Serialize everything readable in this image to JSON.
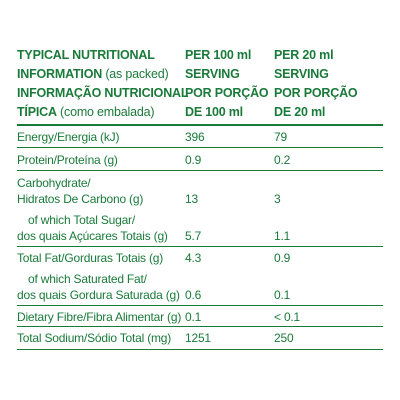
{
  "header": {
    "col1": {
      "line1": "TYPICAL NUTRITIONAL",
      "line2_bold": "INFORMATION",
      "line2_normal": " (as packed)",
      "line3": "INFORMAÇÃO NUTRICIONAL",
      "line4_bold": "TÍPICA",
      "line4_normal": " (como embalada)"
    },
    "col2": {
      "line1": "PER 100 ml",
      "line2": "SERVING",
      "line3": "POR PORÇÃO",
      "line4": "DE 100 ml"
    },
    "col3": {
      "line1": "PER 20 ml",
      "line2": "SERVING",
      "line3": "POR PORÇÃO",
      "line4": "DE 20 ml"
    }
  },
  "rows": [
    {
      "label": [
        "Energy/Energia (kJ)"
      ],
      "per100": "396",
      "per20": "79"
    },
    {
      "label": [
        "Protein/Proteína (g)"
      ],
      "per100": "0.9",
      "per20": "0.2"
    },
    {
      "label": [
        "Carbohydrate/",
        "Hidratos De Carbono (g)"
      ],
      "per100": "13",
      "per20": "3"
    },
    {
      "label": [
        "of which Total Sugar/",
        "dos quais Açúcares Totais (g)"
      ],
      "per100": "5.7",
      "per20": "1.1"
    },
    {
      "label": [
        "Total Fat/Gorduras Totais (g)"
      ],
      "per100": "4.3",
      "per20": "0.9"
    },
    {
      "label": [
        "of which Saturated Fat/",
        "dos quais Gordura Saturada (g)"
      ],
      "per100": "0.6",
      "per20": "0.1"
    },
    {
      "label": [
        "Dietary Fibre/Fibra Alimentar (g)"
      ],
      "per100": "0.1",
      "per20": "< 0.1"
    },
    {
      "label": [
        "Total Sodium/Sódio Total (mg)"
      ],
      "per100": "1251",
      "per20": "250"
    }
  ],
  "colors": {
    "text": "#1a7a3a",
    "background": "#ffffff"
  }
}
